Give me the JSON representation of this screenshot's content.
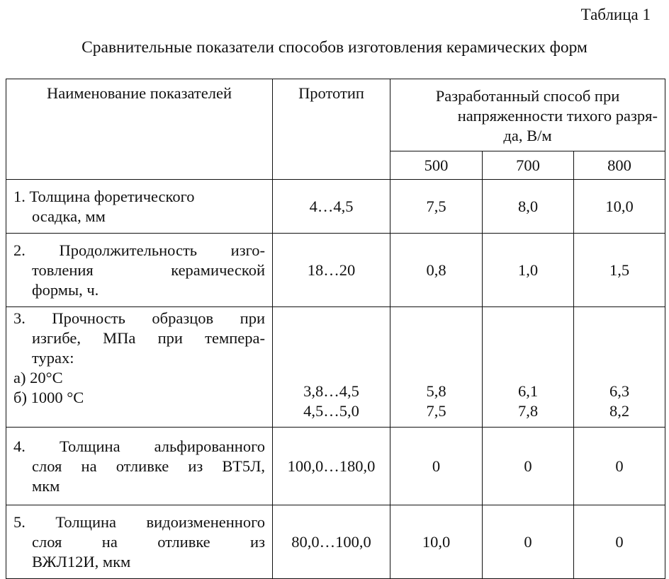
{
  "table_number": "Таблица 1",
  "caption": "Сравнительные показатели способов изготовления керамических форм",
  "header": {
    "name": "Наименование показателей",
    "prototype": "Прототип",
    "method_line1": "Разработанный способ при",
    "method_line2": "напряженности тихого разря-",
    "method_line3": "да, В/м",
    "sub": [
      "500",
      "700",
      "800"
    ]
  },
  "rows": [
    {
      "name_line1": "1. Толщина форетического",
      "name_rest": "осадка, мм",
      "prototype": "4…4,5",
      "v500": "7,5",
      "v700": "8,0",
      "v800": "10,0"
    },
    {
      "name_line1": "2. Продолжительность изго-",
      "name_line2": "товления керамической",
      "name_line3": "формы, ч.",
      "prototype": "18…20",
      "v500": "0,8",
      "v700": "1,0",
      "v800": "1,5"
    },
    {
      "name_line1": "3. Прочность образцов при",
      "name_line2": "изгибе, МПа при темпера-",
      "name_line3": "турах:",
      "sub_a": "а) 20°С",
      "sub_b": "б) 1000 °С",
      "prototype_a": "3,8…4,5",
      "prototype_b": "4,5…5,0",
      "v500_a": "5,8",
      "v500_b": "7,5",
      "v700_a": "6,1",
      "v700_b": "7,8",
      "v800_a": "6,3",
      "v800_b": "8,2"
    },
    {
      "name_line1": "4. Толщина альфированного",
      "name_line2": "слоя на отливке из ВТ5Л,",
      "name_line3": "мкм",
      "prototype": "100,0…180,0",
      "v500": "0",
      "v700": "0",
      "v800": "0"
    },
    {
      "name_line1": "5. Толщина видоизмененного",
      "name_line2": "слоя на отливке из",
      "name_line3": "ВЖЛ12И, мкм",
      "prototype": "80,0…100,0",
      "v500": "10,0",
      "v700": "0",
      "v800": "0"
    }
  ]
}
